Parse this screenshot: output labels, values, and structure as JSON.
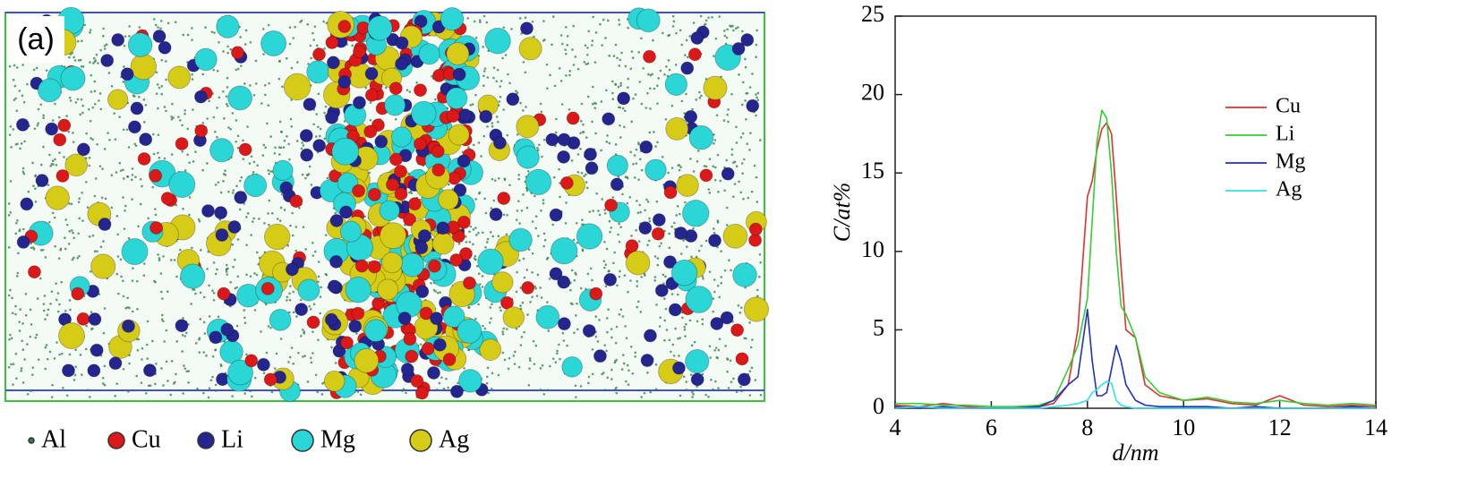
{
  "panel_a": {
    "label": "(a)",
    "legend": [
      "Al",
      "Cu",
      "Li",
      "Mg",
      "Ag"
    ]
  },
  "chart_data": {
    "type": "line",
    "xlabel": "d/nm",
    "ylabel": "C/at%",
    "x": [
      4,
      4.5,
      5,
      5.5,
      6,
      6.5,
      7,
      7.3,
      7.6,
      7.8,
      8.0,
      8.1,
      8.2,
      8.3,
      8.4,
      8.5,
      8.6,
      8.7,
      8.8,
      9.0,
      9.2,
      9.5,
      10,
      10.5,
      11,
      11.5,
      12,
      12.5,
      13,
      13.5,
      14
    ],
    "series": [
      {
        "name": "Cu",
        "color": "#e03030",
        "values": [
          0.2,
          0.1,
          0.3,
          0.1,
          0,
          0.1,
          0.1,
          0.3,
          1.5,
          5,
          13.5,
          14.5,
          16.5,
          17.8,
          18.2,
          17.5,
          13.5,
          9,
          5,
          4.5,
          1.5,
          0.8,
          0.5,
          0.6,
          0.3,
          0.2,
          0.8,
          0.2,
          0.1,
          0.2,
          0.1
        ]
      },
      {
        "name": "Li",
        "color": "#30d030",
        "values": [
          0.3,
          0.3,
          0.2,
          0.2,
          0.1,
          0.1,
          0.2,
          0.5,
          2.5,
          4,
          7,
          12,
          17,
          19,
          18.5,
          15,
          10,
          6.5,
          6,
          4.5,
          2,
          1,
          0.5,
          0.7,
          0.4,
          0.3,
          0.5,
          0.3,
          0.2,
          0.3,
          0.2
        ]
      },
      {
        "name": "Mg",
        "color": "#2030c0",
        "values": [
          0.1,
          0,
          0.1,
          0,
          0,
          0,
          0.1,
          0.5,
          1.5,
          2,
          6.3,
          3,
          0.8,
          0.8,
          1,
          2.5,
          4,
          3,
          1.5,
          0.5,
          0.2,
          0.1,
          0.1,
          0.1,
          0,
          0.1,
          0,
          0,
          0,
          0.1,
          0
        ]
      },
      {
        "name": "Ag",
        "color": "#30e0e8",
        "values": [
          0,
          0.1,
          0,
          0,
          0,
          0,
          0,
          0.1,
          0.2,
          0.3,
          0.5,
          1,
          1.2,
          1.5,
          1.7,
          1.6,
          0.5,
          0.2,
          0.1,
          0,
          0,
          0,
          0,
          0,
          0,
          0,
          0,
          0,
          0,
          0,
          0
        ]
      }
    ],
    "xlim": [
      4,
      14
    ],
    "xticks": [
      4,
      6,
      8,
      10,
      12,
      14
    ],
    "ylim": [
      0,
      25
    ],
    "yticks": [
      0,
      5,
      10,
      15,
      20,
      25
    ],
    "legend": "upper right"
  }
}
